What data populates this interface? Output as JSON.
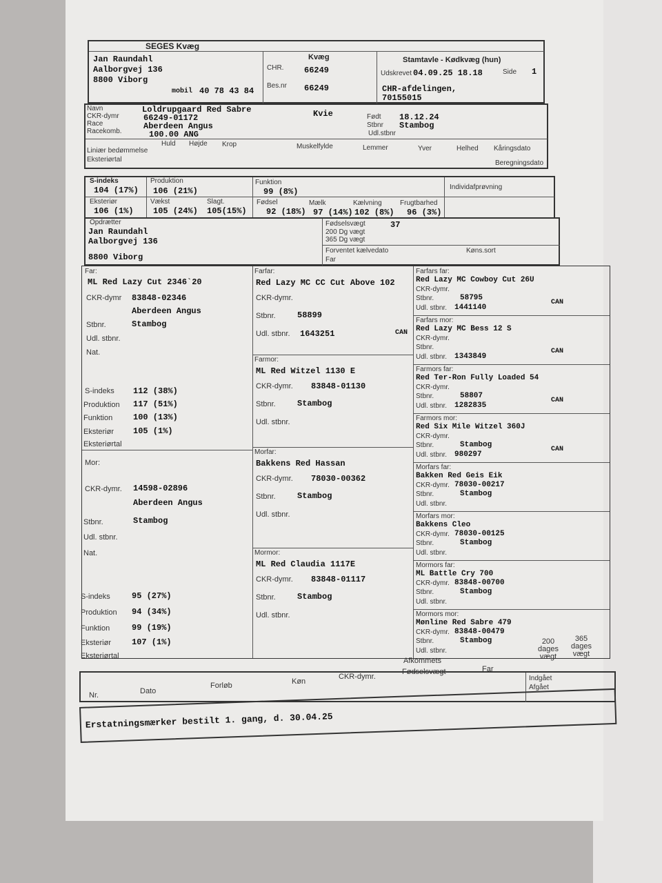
{
  "header": {
    "org": "SEGES Kvæg",
    "owner_name": "Jan Raundahl",
    "owner_street": "Aalborgvej 136",
    "owner_city": "8800  Viborg",
    "mobile_label": "mobil",
    "mobile": "40 78 43 84",
    "mid_title": "Kvæg",
    "chr_label": "CHR.",
    "chr": "66249",
    "besnr_label": "Bes.nr",
    "besnr": "66249",
    "doc_title": "Stamtavle - Kødkvæg (hun)",
    "printed_label": "Udskrevet",
    "printed": "04.09.25 18.18",
    "page_label": "Side",
    "page": "1",
    "dept": "CHR-afdelingen,",
    "dept_no": "70155015"
  },
  "animal": {
    "name_label": "Navn",
    "name": "Loldrupgaard Red Sabre",
    "sex": "Kvie",
    "ckr_label": "CKR-dymr",
    "ckr": "66249-01172",
    "race_label": "Race",
    "race": "Aberdeen Angus",
    "racekomb_label": "Racekomb.",
    "racekomb": "100.00 ANG",
    "born_label": "Født",
    "born": "18.12.24",
    "stbnr_label": "Stbnr",
    "stbnr": "Stambog",
    "udl_label": "Udl.stbnr",
    "linear_label": "Liniær bedømmelse",
    "ext_label": "Eksteriørtal",
    "cols": [
      "Huld",
      "Højde",
      "Krop",
      "Muskelfylde",
      "Lemmer",
      "Yver",
      "Helhed",
      "Kåringsdato"
    ],
    "calc_label": "Beregningsdato"
  },
  "index": {
    "s_label": "S-indeks",
    "s": "104 (17%)",
    "prod_label": "Produktion",
    "prod": "106 (21%)",
    "funk_label": "Funktion",
    "funk": "99 (8%)",
    "indiv_label": "Individafprøvning",
    "ext_label": "Eksteriør",
    "ext": "106 (1%)",
    "vaekst_label": "Vækst",
    "vaekst": "105 (24%)",
    "slagt_label": "Slagt.",
    "slagt": "105(15%)",
    "fodsel_label": "Fødsel",
    "fodsel": "92 (18%)",
    "maelk_label": "Mælk",
    "maelk": "97 (14%)",
    "kaelv_label": "Kælvning",
    "kaelv": "102 (8%)",
    "frugt_label": "Frugtbarhed",
    "frugt": "96 (3%)"
  },
  "breeder": {
    "label": "Opdrætter",
    "name": "Jan Raundahl",
    "street": "Aalborgvej 136",
    "city": "8800 Viborg",
    "birthweight_label": "Fødselsvægt",
    "birthweight": "37",
    "w200_label": "200 Dg vægt",
    "w365_label": "365 Dg vægt",
    "calving_label": "Forventet kælvedato",
    "sexsort_label": "Køns.sort",
    "far_label": "Far"
  },
  "pedigree": {
    "far": {
      "label": "Far:",
      "name": "ML Red Lazy Cut 2346`20",
      "ckr_label": "CKR-dymr",
      "ckr": "83848-02346",
      "race": "Aberdeen Angus",
      "stbnr_label": "Stbnr.",
      "stbnr": "Stambog",
      "udl_label": "Udl. stbnr.",
      "nat_label": "Nat.",
      "s_label": "S-indeks",
      "s": "112 (38%)",
      "prod_label": "Produktion",
      "prod": "117 (51%)",
      "funk_label": "Funktion",
      "funk": "100 (13%)",
      "ext_label": "Eksteriør",
      "ext": "105 (1%)",
      "exttal_label": "Eksteriørtal"
    },
    "mor": {
      "label": "Mor:",
      "ckr_label": "CKR-dymr.",
      "ckr": "14598-02896",
      "race": "Aberdeen Angus",
      "stbnr_label": "Stbnr.",
      "stbnr": "Stambog",
      "udl_label": "Udl. stbnr.",
      "nat_label": "Nat.",
      "s_label": "S-indeks",
      "s": "95 (27%)",
      "prod_label": "Produktion",
      "prod": "94 (34%)",
      "funk_label": "Funktion",
      "funk": "99 (19%)",
      "ext_label": "Eksteriør",
      "ext": "107 (1%)",
      "exttal_label": "Eksteriørtal"
    },
    "gp": [
      {
        "label": "Farfar:",
        "name": "Red Lazy MC CC Cut Above 102",
        "ckr_label": "CKR-dymr.",
        "ckr": "",
        "stbnr_label": "Stbnr.",
        "stbnr": "58899",
        "udl_label": "Udl. stbnr.",
        "udl": "1643251",
        "country": "CAN"
      },
      {
        "label": "Farmor:",
        "name": "ML Red Witzel 1130 E",
        "ckr_label": "CKR-dymr.",
        "ckr": "83848-01130",
        "stbnr_label": "Stbnr.",
        "stbnr": "Stambog",
        "udl_label": "Udl. stbnr.",
        "udl": "",
        "country": ""
      },
      {
        "label": "Morfar:",
        "name": "Bakkens Red Hassan",
        "ckr_label": "CKR-dymr.",
        "ckr": "78030-00362",
        "stbnr_label": "Stbnr.",
        "stbnr": "Stambog",
        "udl_label": "Udl. stbnr.",
        "udl": "",
        "country": ""
      },
      {
        "label": "Mormor:",
        "name": "ML Red Claudia 1117E",
        "ckr_label": "CKR-dymr.",
        "ckr": "83848-01117",
        "stbnr_label": "Stbnr.",
        "stbnr": "Stambog",
        "udl_label": "Udl. stbnr.",
        "udl": "",
        "country": ""
      }
    ],
    "ggp": [
      {
        "label": "Farfars far:",
        "name": "Red Lazy MC Cowboy Cut 26U",
        "ckr": "",
        "stbnr": "58795",
        "udl": "1441140",
        "country": "CAN"
      },
      {
        "label": "Farfars mor:",
        "name": "Red Lazy MC Bess 12 S",
        "ckr": "",
        "stbnr": "",
        "udl": "1343849",
        "country": "CAN"
      },
      {
        "label": "Farmors far:",
        "name": "Red Ter-Ron Fully Loaded 54",
        "ckr": "",
        "stbnr": "58807",
        "udl": "1282835",
        "country": "CAN"
      },
      {
        "label": "Farmors mor:",
        "name": "Red Six Mile Witzel 360J",
        "ckr": "",
        "stbnr": "Stambog",
        "udl": "980297",
        "country": "CAN"
      },
      {
        "label": "Morfars far:",
        "name": "Bakken Red Geis Eik",
        "ckr": "78030-00217",
        "stbnr": "Stambog",
        "udl": "",
        "country": ""
      },
      {
        "label": "Morfars mor:",
        "name": "Bakkens Cleo",
        "ckr": "78030-00125",
        "stbnr": "Stambog",
        "udl": "",
        "country": ""
      },
      {
        "label": "Mormors far:",
        "name": "ML Battle Cry 700",
        "ckr": "83848-00700",
        "stbnr": "Stambog",
        "udl": "",
        "country": ""
      },
      {
        "label": "Mormors mor:",
        "name": "Mønline Red Sabre 479",
        "ckr": "83848-00479",
        "stbnr": "Stambog",
        "udl": "",
        "country": ""
      }
    ],
    "ckr_label": "CKR-dymr.",
    "stbnr_label": "Stbnr.",
    "udl_label": "Udl. stbnr."
  },
  "offspring": {
    "title": "Afkommets",
    "cols": [
      "Nr.",
      "Dato",
      "Forløb",
      "Køn",
      "CKR-dymr.",
      "Fødselsvægt",
      "Far"
    ],
    "w200": "200 dages vægt",
    "w365": "365 dages vægt",
    "in_label": "Indgået",
    "out_label": "Afgået"
  },
  "note": "Erstatningsmærker bestilt 1. gang, d. 30.04.25"
}
